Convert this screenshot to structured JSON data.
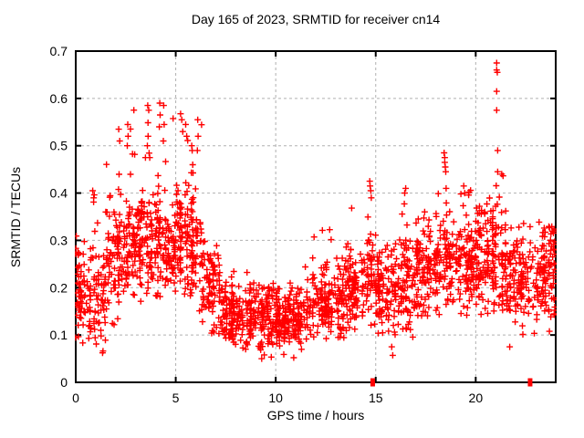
{
  "chart_data": {
    "type": "scatter",
    "title": "Day 165 of 2023, SRMTID for receiver cn14",
    "xlabel": "GPS time / hours",
    "ylabel": "SRMTID / TECUs",
    "xlim": [
      0,
      24
    ],
    "ylim": [
      0,
      0.7
    ],
    "xticks": [
      0,
      5,
      10,
      15,
      20
    ],
    "xticklabels": [
      "0",
      "5",
      "10",
      "15",
      "20"
    ],
    "yticks": [
      0,
      0.1,
      0.2,
      0.3,
      0.4,
      0.5,
      0.6,
      0.7
    ],
    "yticklabels": [
      "0",
      "0.1",
      "0.2",
      "0.3",
      "0.4",
      "0.5",
      "0.6",
      "0.7"
    ],
    "grid": true,
    "grid_style": "dashed",
    "legend": "none",
    "marker": {
      "shape": "plus",
      "size": 7,
      "color": "#ff0000"
    },
    "colors": {
      "marker": "#ff0000",
      "grid": "#b0b0b0",
      "axis": "#000000",
      "text": "#000000",
      "background": "#ffffff"
    },
    "scatter_generation": {
      "seed": 165
    },
    "density_profile": [
      {
        "x0": 0.0,
        "x1": 0.7,
        "y_mean": 0.2,
        "y_min": 0.07,
        "y_max": 0.31,
        "pts_per_hour": 95,
        "outlier_prob": 0.0,
        "outlier_max": 0.31
      },
      {
        "x0": 0.7,
        "x1": 1.5,
        "y_mean": 0.17,
        "y_min": 0.06,
        "y_max": 0.3,
        "pts_per_hour": 95,
        "outlier_prob": 0.02,
        "outlier_max": 0.4
      },
      {
        "x0": 1.5,
        "x1": 2.6,
        "y_mean": 0.27,
        "y_min": 0.12,
        "y_max": 0.4,
        "pts_per_hour": 100,
        "outlier_prob": 0.03,
        "outlier_max": 0.54
      },
      {
        "x0": 2.6,
        "x1": 4.3,
        "y_mean": 0.3,
        "y_min": 0.15,
        "y_max": 0.44,
        "pts_per_hour": 110,
        "outlier_prob": 0.05,
        "outlier_max": 0.59
      },
      {
        "x0": 4.3,
        "x1": 5.0,
        "y_mean": 0.27,
        "y_min": 0.16,
        "y_max": 0.38,
        "pts_per_hour": 100,
        "outlier_prob": 0.04,
        "outlier_max": 0.585
      },
      {
        "x0": 5.0,
        "x1": 6.3,
        "y_mean": 0.3,
        "y_min": 0.15,
        "y_max": 0.45,
        "pts_per_hour": 110,
        "outlier_prob": 0.04,
        "outlier_max": 0.575
      },
      {
        "x0": 6.3,
        "x1": 7.2,
        "y_mean": 0.2,
        "y_min": 0.1,
        "y_max": 0.32,
        "pts_per_hour": 95,
        "outlier_prob": 0.01,
        "outlier_max": 0.36
      },
      {
        "x0": 7.2,
        "x1": 8.5,
        "y_mean": 0.15,
        "y_min": 0.07,
        "y_max": 0.24,
        "pts_per_hour": 95,
        "outlier_prob": 0.01,
        "outlier_max": 0.27
      },
      {
        "x0": 8.5,
        "x1": 11.8,
        "y_mean": 0.135,
        "y_min": 0.05,
        "y_max": 0.21,
        "pts_per_hour": 100,
        "outlier_prob": 0.01,
        "outlier_max": 0.25
      },
      {
        "x0": 11.8,
        "x1": 13.5,
        "y_mean": 0.17,
        "y_min": 0.09,
        "y_max": 0.28,
        "pts_per_hour": 95,
        "outlier_prob": 0.02,
        "outlier_max": 0.33
      },
      {
        "x0": 13.5,
        "x1": 14.6,
        "y_mean": 0.2,
        "y_min": 0.1,
        "y_max": 0.32,
        "pts_per_hour": 95,
        "outlier_prob": 0.02,
        "outlier_max": 0.37
      },
      {
        "x0": 14.6,
        "x1": 15.1,
        "y_mean": 0.23,
        "y_min": 0.12,
        "y_max": 0.35,
        "pts_per_hour": 100,
        "outlier_prob": 0.0,
        "outlier_max": 0.37
      },
      {
        "x0": 15.1,
        "x1": 16.2,
        "y_mean": 0.2,
        "y_min": 0.1,
        "y_max": 0.35,
        "pts_per_hour": 95,
        "outlier_prob": 0.01,
        "outlier_max": 0.385
      },
      {
        "x0": 16.2,
        "x1": 17.0,
        "y_mean": 0.2,
        "y_min": 0.08,
        "y_max": 0.33,
        "pts_per_hour": 95,
        "outlier_prob": 0.02,
        "outlier_max": 0.4
      },
      {
        "x0": 17.0,
        "x1": 18.2,
        "y_mean": 0.24,
        "y_min": 0.12,
        "y_max": 0.36,
        "pts_per_hour": 100,
        "outlier_prob": 0.02,
        "outlier_max": 0.42
      },
      {
        "x0": 18.2,
        "x1": 18.7,
        "y_mean": 0.27,
        "y_min": 0.15,
        "y_max": 0.38,
        "pts_per_hour": 100,
        "outlier_prob": 0.0,
        "outlier_max": 0.42
      },
      {
        "x0": 18.7,
        "x1": 20.3,
        "y_mean": 0.26,
        "y_min": 0.14,
        "y_max": 0.37,
        "pts_per_hour": 105,
        "outlier_prob": 0.03,
        "outlier_max": 0.42
      },
      {
        "x0": 20.3,
        "x1": 21.5,
        "y_mean": 0.26,
        "y_min": 0.12,
        "y_max": 0.4,
        "pts_per_hour": 105,
        "outlier_prob": 0.02,
        "outlier_max": 0.45
      },
      {
        "x0": 21.5,
        "x1": 22.6,
        "y_mean": 0.22,
        "y_min": 0.09,
        "y_max": 0.33,
        "pts_per_hour": 95,
        "outlier_prob": 0.01,
        "outlier_max": 0.36
      },
      {
        "x0": 22.6,
        "x1": 23.95,
        "y_mean": 0.23,
        "y_min": 0.08,
        "y_max": 0.33,
        "pts_per_hour": 95,
        "outlier_prob": 0.02,
        "outlier_max": 0.36
      }
    ],
    "notable_points": [
      [
        0.85,
        0.405
      ],
      [
        0.9,
        0.39
      ],
      [
        2.15,
        0.535
      ],
      [
        2.2,
        0.51
      ],
      [
        2.6,
        0.545
      ],
      [
        2.62,
        0.52
      ],
      [
        2.58,
        0.5
      ],
      [
        3.6,
        0.585
      ],
      [
        3.65,
        0.575
      ],
      [
        3.62,
        0.52
      ],
      [
        3.58,
        0.5
      ],
      [
        3.7,
        0.475
      ],
      [
        4.2,
        0.59
      ],
      [
        4.22,
        0.565
      ],
      [
        4.18,
        0.54
      ],
      [
        4.4,
        0.585
      ],
      [
        4.42,
        0.545
      ],
      [
        4.38,
        0.51
      ],
      [
        5.3,
        0.555
      ],
      [
        5.35,
        0.53
      ],
      [
        5.5,
        0.545
      ],
      [
        5.55,
        0.52
      ],
      [
        5.8,
        0.5
      ],
      [
        5.82,
        0.49
      ],
      [
        5.85,
        0.46
      ],
      [
        6.1,
        0.555
      ],
      [
        6.12,
        0.52
      ],
      [
        6.08,
        0.49
      ],
      [
        9.3,
        0.05
      ],
      [
        10.9,
        0.052
      ],
      [
        14.7,
        0.425
      ],
      [
        14.72,
        0.415
      ],
      [
        14.75,
        0.405
      ],
      [
        14.78,
        0.39
      ],
      [
        15.8,
        0.075
      ],
      [
        15.85,
        0.057
      ],
      [
        16.45,
        0.4
      ],
      [
        16.5,
        0.41
      ],
      [
        18.42,
        0.485
      ],
      [
        18.45,
        0.475
      ],
      [
        18.45,
        0.465
      ],
      [
        18.48,
        0.455
      ],
      [
        18.5,
        0.445
      ],
      [
        18.52,
        0.41
      ],
      [
        19.4,
        0.415
      ],
      [
        19.45,
        0.4
      ],
      [
        21.05,
        0.675
      ],
      [
        21.05,
        0.66
      ],
      [
        21.08,
        0.655
      ],
      [
        21.05,
        0.615
      ],
      [
        21.05,
        0.575
      ],
      [
        21.1,
        0.49
      ],
      [
        21.1,
        0.445
      ],
      [
        21.3,
        0.44
      ],
      [
        21.7,
        0.075
      ],
      [
        23.9,
        0.32
      ],
      [
        23.92,
        0.28
      ],
      [
        23.95,
        0.25
      ],
      [
        23.9,
        0.22
      ]
    ],
    "zero_points": [
      [
        14.85,
        0
      ],
      [
        22.72,
        0
      ]
    ]
  }
}
